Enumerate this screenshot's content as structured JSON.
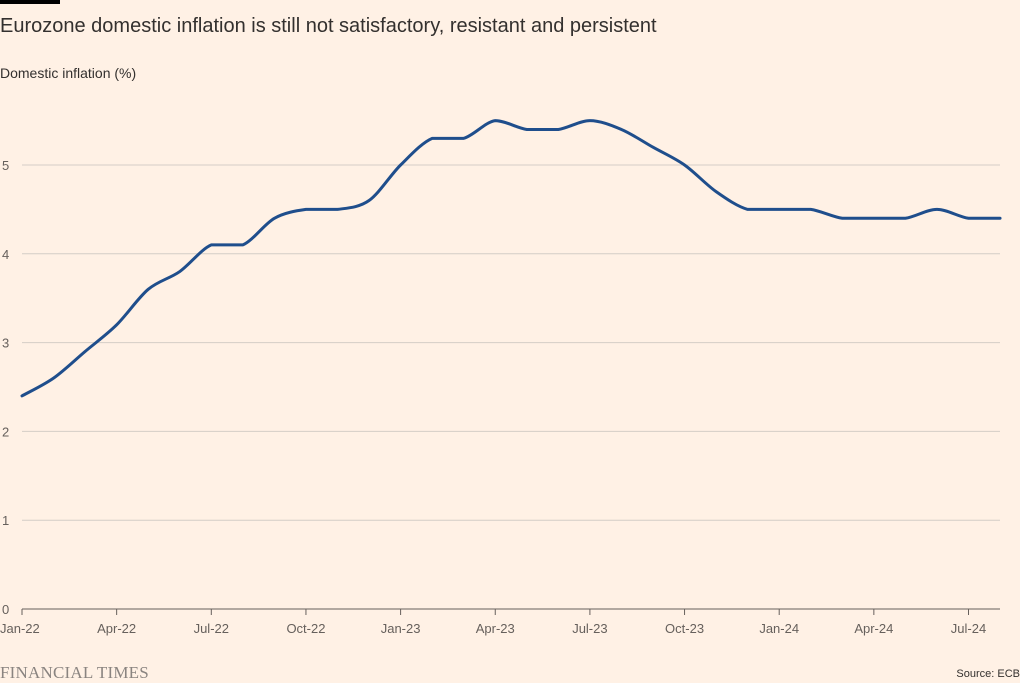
{
  "header": {
    "title": "Eurozone domestic inflation is still not satisfactory, resistant and persistent",
    "subtitle": "Domestic inflation (%)"
  },
  "footer": {
    "logo": "FINANCIAL TIMES",
    "source": "Source: ECB"
  },
  "colors": {
    "background": "#fff1e5",
    "line": "#1f4e8c",
    "grid": "#d4cdc6"
  },
  "chart_data": {
    "type": "line",
    "ylabel": "Domestic inflation (%)",
    "ylim": [
      0,
      5.5
    ],
    "yticks": [
      0,
      1,
      2,
      3,
      4,
      5
    ],
    "xtick_labels": [
      "Jan-22",
      "Apr-22",
      "Jul-22",
      "Oct-22",
      "Jan-23",
      "Apr-23",
      "Jul-23",
      "Oct-23",
      "Jan-24",
      "Apr-24",
      "Jul-24"
    ],
    "grid": true,
    "legend": "none",
    "x": [
      "Jan-22",
      "Feb-22",
      "Mar-22",
      "Apr-22",
      "May-22",
      "Jun-22",
      "Jul-22",
      "Aug-22",
      "Sep-22",
      "Oct-22",
      "Nov-22",
      "Dec-22",
      "Jan-23",
      "Feb-23",
      "Mar-23",
      "Apr-23",
      "May-23",
      "Jun-23",
      "Jul-23",
      "Aug-23",
      "Sep-23",
      "Oct-23",
      "Nov-23",
      "Dec-23",
      "Jan-24",
      "Feb-24",
      "Mar-24",
      "Apr-24",
      "May-24",
      "Jun-24",
      "Jul-24",
      "Aug-24"
    ],
    "series": [
      {
        "values": [
          2.4,
          2.6,
          2.9,
          3.2,
          3.6,
          3.8,
          4.1,
          4.1,
          4.4,
          4.5,
          4.5,
          4.6,
          5.0,
          5.3,
          5.3,
          5.5,
          5.4,
          5.4,
          5.5,
          5.4,
          5.2,
          5.0,
          4.7,
          4.5,
          4.5,
          4.5,
          4.4,
          4.4,
          4.4,
          4.5,
          4.4,
          4.4
        ]
      }
    ]
  }
}
